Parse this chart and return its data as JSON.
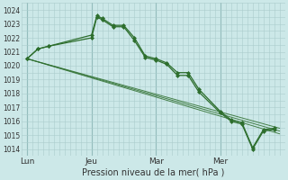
{
  "background_color": "#cce8e8",
  "grid_color": "#aacccc",
  "line_color": "#2d6e2d",
  "marker_color": "#2d6e2d",
  "title": "Pression niveau de la mer( hPa )",
  "ylim": [
    1013.5,
    1024.5
  ],
  "yticks": [
    1014,
    1015,
    1016,
    1017,
    1018,
    1019,
    1020,
    1021,
    1022,
    1023,
    1024
  ],
  "day_labels": [
    "Lun",
    "Jeu",
    "Mar",
    "Mer"
  ],
  "day_positions": [
    0,
    12,
    24,
    36
  ],
  "xlim": [
    -1,
    48
  ],
  "trend_lines": [
    {
      "x": [
        0,
        47
      ],
      "y": [
        1020.5,
        1015.5
      ]
    },
    {
      "x": [
        0,
        47
      ],
      "y": [
        1020.5,
        1015.3
      ]
    },
    {
      "x": [
        0,
        47
      ],
      "y": [
        1020.5,
        1015.1
      ]
    }
  ],
  "series1_x": [
    0,
    2,
    4,
    12,
    13,
    14,
    16,
    18,
    20,
    22,
    24,
    26,
    28,
    30,
    32,
    36,
    38,
    40,
    42,
    44,
    46
  ],
  "series1_y": [
    1020.5,
    1021.2,
    1021.4,
    1022.2,
    1023.6,
    1023.4,
    1022.9,
    1022.9,
    1022.0,
    1020.7,
    1020.5,
    1020.2,
    1019.5,
    1019.5,
    1018.3,
    1016.7,
    1016.1,
    1015.9,
    1014.1,
    1015.4,
    1015.5
  ],
  "series2_x": [
    0,
    2,
    4,
    12,
    13,
    14,
    16,
    18,
    20,
    22,
    24,
    26,
    28,
    30,
    32,
    36,
    38,
    40,
    42,
    44,
    46
  ],
  "series2_y": [
    1020.5,
    1021.2,
    1021.4,
    1022.0,
    1023.5,
    1023.3,
    1022.8,
    1022.8,
    1021.8,
    1020.6,
    1020.4,
    1020.1,
    1019.3,
    1019.3,
    1018.1,
    1016.6,
    1016.0,
    1015.8,
    1014.0,
    1015.3,
    1015.4
  ]
}
